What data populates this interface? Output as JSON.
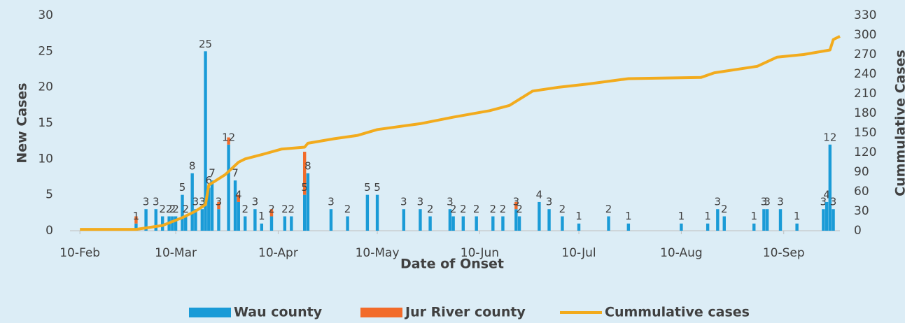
{
  "chart_data": {
    "type": "bar-line",
    "x_label": "Date of Onset",
    "y_label": "New Cases",
    "y2_label": "Cummulative Cases",
    "xlim": [
      -3,
      230
    ],
    "xticks": [
      {
        "value": 0,
        "label": "10-Feb"
      },
      {
        "value": 29,
        "label": "10-Mar"
      },
      {
        "value": 60,
        "label": "10-Apr"
      },
      {
        "value": 90,
        "label": "10-May"
      },
      {
        "value": 121,
        "label": "10-Jun"
      },
      {
        "value": 151,
        "label": "10-Jul"
      },
      {
        "value": 182,
        "label": "10-Aug"
      },
      {
        "value": 213,
        "label": "10-Sep"
      }
    ],
    "ylim": [
      0,
      30
    ],
    "yticks": [
      0,
      5,
      10,
      15,
      20,
      25,
      30
    ],
    "y2lim": [
      0,
      330
    ],
    "y2ticks": [
      0,
      30,
      60,
      90,
      120,
      150,
      180,
      210,
      240,
      270,
      300,
      330
    ],
    "legend": "bottom",
    "x": [
      17,
      20,
      23,
      25,
      27,
      28,
      29,
      31,
      32,
      34,
      35,
      37,
      38,
      39,
      40,
      42,
      45,
      47,
      48,
      50,
      53,
      55,
      58,
      62,
      64,
      68,
      69,
      76,
      81,
      87,
      90,
      98,
      103,
      106,
      112,
      113,
      116,
      120,
      125,
      128,
      132,
      133,
      139,
      142,
      146,
      151,
      160,
      166,
      182,
      190,
      193,
      195,
      204,
      207,
      208,
      212,
      217,
      225,
      226,
      227,
      228
    ],
    "series": [
      {
        "name": "Wau county",
        "color": "#1a9bd7",
        "stack": true,
        "values": [
          1,
          3,
          3,
          2,
          2,
          2,
          2,
          5,
          2,
          8,
          3,
          3,
          25,
          6,
          7,
          3,
          12,
          7,
          4,
          2,
          3,
          1,
          2,
          2,
          2,
          5,
          8,
          3,
          2,
          5,
          5,
          3,
          3,
          2,
          3,
          2,
          2,
          2,
          2,
          2,
          3,
          2,
          4,
          3,
          2,
          1,
          2,
          1,
          1,
          1,
          3,
          2,
          1,
          3,
          3,
          3,
          1,
          3,
          4,
          12,
          3
        ]
      },
      {
        "name": "Jur River county",
        "color": "#f26b2a",
        "stack": true,
        "values": [
          1,
          0,
          0,
          0,
          0,
          0,
          0,
          0,
          0,
          0,
          0,
          0,
          0,
          0,
          0,
          1,
          1,
          0,
          1,
          0,
          0,
          0,
          1,
          0,
          0,
          6,
          0,
          0,
          0,
          0,
          0,
          0,
          0,
          0,
          0,
          0,
          0,
          0,
          0,
          0,
          1,
          0,
          0,
          0,
          0,
          0,
          0,
          0,
          0,
          0,
          0,
          0,
          0,
          0,
          0,
          0,
          0,
          0,
          0,
          0,
          0
        ]
      },
      {
        "name": "Cummulative cases",
        "color": "#f2ab1d",
        "axis": "y2",
        "line": true,
        "x": [
          0,
          17,
          25,
          31,
          35,
          38,
          39,
          44,
          48,
          50,
          56,
          61,
          68,
          69,
          77,
          84,
          90,
          103,
          113,
          124,
          130,
          137,
          145,
          154,
          166,
          188,
          192,
          205,
          211,
          219,
          227,
          228,
          230
        ],
        "values": [
          2,
          2,
          8,
          20,
          30,
          40,
          70,
          86,
          105,
          110,
          118,
          125,
          128,
          134,
          141,
          146,
          155,
          164,
          174,
          184,
          192,
          214,
          220,
          225,
          233,
          235,
          242,
          252,
          266,
          270,
          277,
          293,
          298
        ]
      }
    ]
  }
}
